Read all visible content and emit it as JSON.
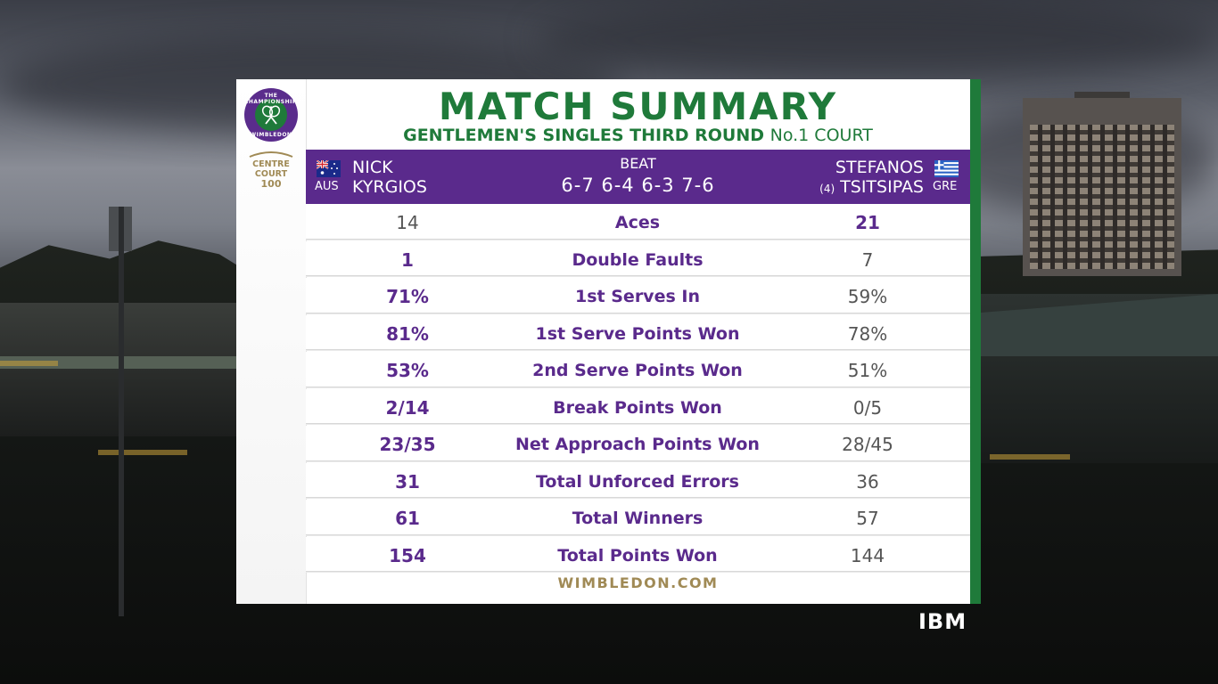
{
  "colors": {
    "purple": "#5a2a8c",
    "green": "#1f7a3a",
    "gold": "#a08a55",
    "dim_value": "#555555"
  },
  "logo": {
    "badge_text_top": "THE CHAMPIONSHIPS",
    "badge_text_bottom": "WIMBLEDON",
    "centre_court_line1": "CENTRE",
    "centre_court_line2": "COURT",
    "centre_court_line3": "100"
  },
  "title": "MATCH SUMMARY",
  "subtitle": {
    "event": "GENTLEMEN'S SINGLES THIRD ROUND",
    "court": "No.1 COURT"
  },
  "player1": {
    "first_name": "NICK",
    "last_name": "KYRGIOS",
    "country": "AUS",
    "flag_icon": "australia-flag-icon"
  },
  "player2": {
    "first_name": "STEFANOS",
    "last_name": "TSITSIPAS",
    "seed": "(4)",
    "country": "GRE",
    "flag_icon": "greece-flag-icon"
  },
  "result": {
    "label": "BEAT",
    "score": "6-7 6-4 6-3 7-6"
  },
  "stats": [
    {
      "label": "Aces",
      "p1": "14",
      "p2": "21",
      "leader": "p2"
    },
    {
      "label": "Double Faults",
      "p1": "1",
      "p2": "7",
      "leader": "p1"
    },
    {
      "label": "1st Serves In",
      "p1": "71%",
      "p2": "59%",
      "leader": "p1"
    },
    {
      "label": "1st Serve Points Won",
      "p1": "81%",
      "p2": "78%",
      "leader": "p1"
    },
    {
      "label": "2nd Serve Points Won",
      "p1": "53%",
      "p2": "51%",
      "leader": "p1"
    },
    {
      "label": "Break Points Won",
      "p1": "2/14",
      "p2": "0/5",
      "leader": "p1"
    },
    {
      "label": "Net Approach Points Won",
      "p1": "23/35",
      "p2": "28/45",
      "leader": "p1"
    },
    {
      "label": "Total Unforced Errors",
      "p1": "31",
      "p2": "36",
      "leader": "p1"
    },
    {
      "label": "Total Winners",
      "p1": "61",
      "p2": "57",
      "leader": "p1"
    },
    {
      "label": "Total Points Won",
      "p1": "154",
      "p2": "144",
      "leader": "p1"
    }
  ],
  "footer": "WIMBLEDON.COM",
  "sponsor": "IBM"
}
